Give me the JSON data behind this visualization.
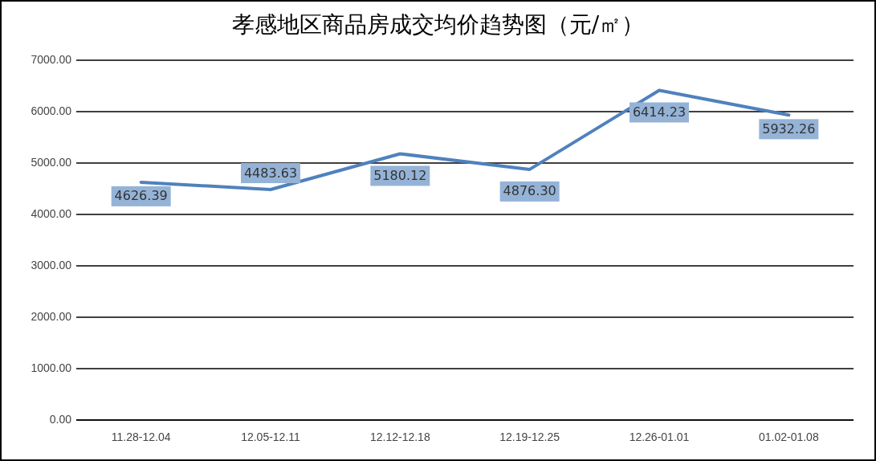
{
  "chart_data": {
    "type": "line",
    "title": "孝感地区商品房成交均价趋势图（元/㎡）",
    "categories": [
      "11.28-12.04",
      "12.05-12.11",
      "12.12-12.18",
      "12.19-12.25",
      "12.26-01.01",
      "01.02-01.08"
    ],
    "series": [
      {
        "color": "#4f81bd",
        "values": [
          4626.39,
          4483.63,
          5180.12,
          4876.3,
          6414.23,
          5932.26
        ],
        "value_labels": [
          "4626.39",
          "4483.63",
          "5180.12",
          "4876.30",
          "6414.23",
          "5932.26"
        ]
      }
    ],
    "ylim": [
      0,
      7000
    ],
    "yticks": [
      {
        "value": 0,
        "label": "0.00"
      },
      {
        "value": 1000,
        "label": "1000.00"
      },
      {
        "value": 2000,
        "label": "2000.00"
      },
      {
        "value": 3000,
        "label": "3000.00"
      },
      {
        "value": 4000,
        "label": "4000.00"
      },
      {
        "value": 5000,
        "label": "5000.00"
      },
      {
        "value": 6000,
        "label": "6000.00"
      },
      {
        "value": 7000,
        "label": "7000.00"
      }
    ],
    "grid": "y",
    "marker": "none",
    "line_style": "solid"
  }
}
